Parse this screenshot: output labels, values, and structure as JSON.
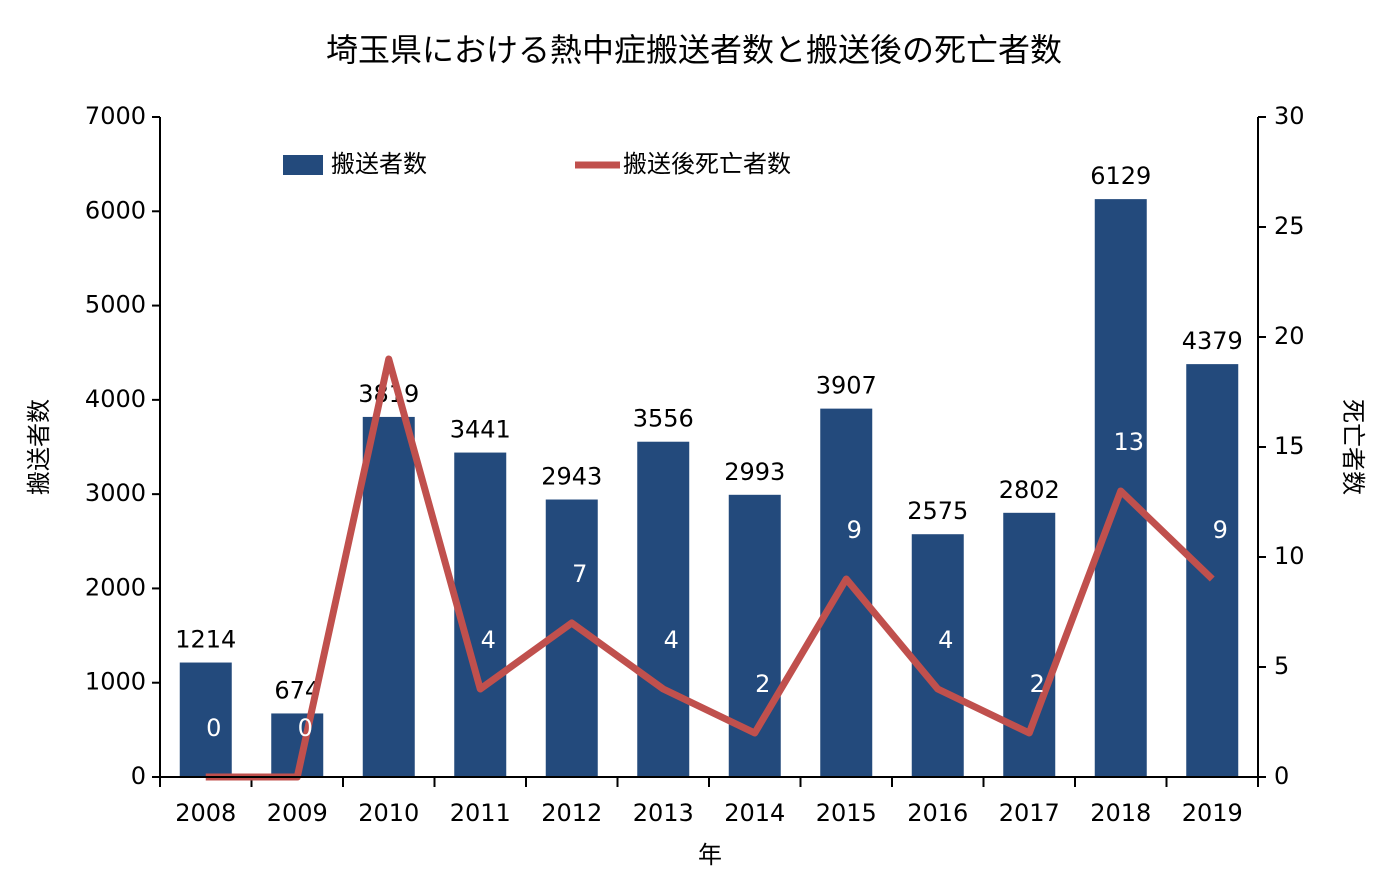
{
  "chart_data": {
    "type": "bar",
    "title": "埼玉県における熱中症搬送者数と搬送後の死亡者数",
    "x_label": "年",
    "y_label": "搬送者数",
    "y2_label": "死亡者数",
    "categories": [
      "2008",
      "2009",
      "2010",
      "2011",
      "2012",
      "2013",
      "2014",
      "2015",
      "2016",
      "2017",
      "2018",
      "2019"
    ],
    "series": [
      {
        "name": "搬送者数",
        "type": "bar",
        "color": "#234a7c",
        "values": [
          1214,
          674,
          3819,
          3441,
          2943,
          3556,
          2993,
          3907,
          2575,
          2802,
          6129,
          4379
        ]
      },
      {
        "name": "搬送後死亡者数",
        "type": "line",
        "axis": "y2",
        "color": "#c0504d",
        "values": [
          0,
          0,
          19,
          4,
          7,
          4,
          2,
          9,
          4,
          2,
          13,
          9
        ]
      }
    ],
    "ylim": [
      0,
      7000
    ],
    "yticks": [
      0,
      1000,
      2000,
      3000,
      4000,
      5000,
      6000,
      7000
    ],
    "y2lim": [
      0,
      30
    ],
    "y2ticks": [
      0,
      5,
      10,
      15,
      20,
      25,
      30
    ],
    "legend": "top"
  }
}
